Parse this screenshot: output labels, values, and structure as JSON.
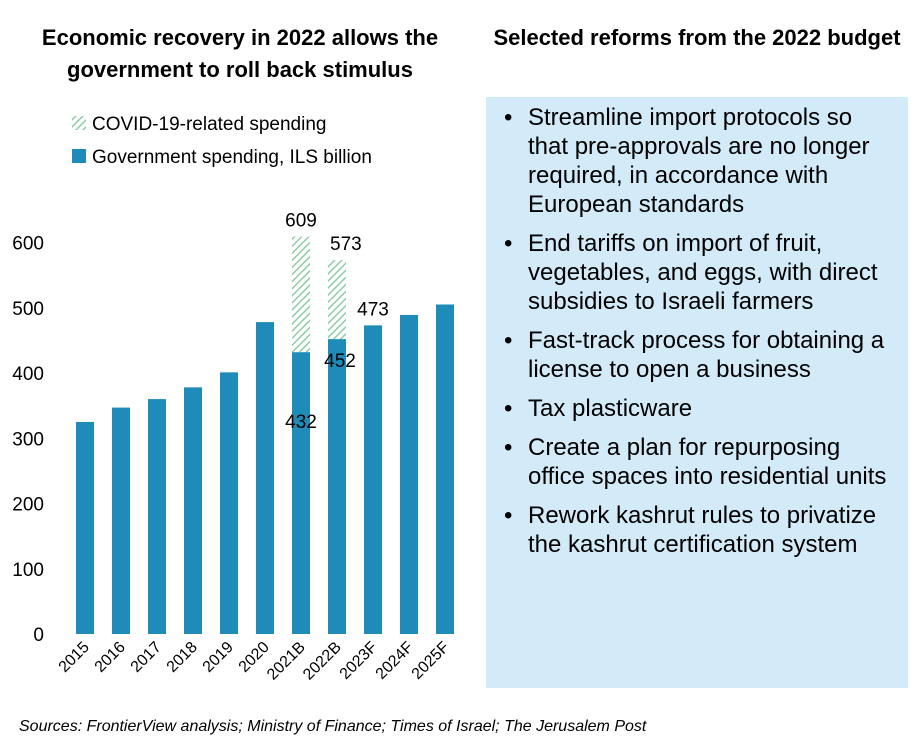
{
  "chart_title": "Economic recovery in 2022 allows the government to roll back stimulus",
  "reforms_title": "Selected reforms from the 2022 budget",
  "reforms": [
    "Streamline import protocols so that pre-approvals are no longer required, in accordance with European standards",
    "End tariffs on import of fruit, vegetables, and eggs, with direct subsidies to Israeli farmers",
    "Fast-track process for obtaining a license to open a business",
    "Tax plasticware",
    "Create a plan for repurposing office spaces into residential units",
    "Rework kashrut rules to privatize the kashrut certification system"
  ],
  "source": "Sources: FrontierView analysis; Ministry of Finance; Times of Israel; The Jerusalem Post",
  "colors": {
    "base": "#1e8bb8",
    "covid": "#7cc79a",
    "box": "#d3eaf8"
  },
  "chart_data": {
    "type": "bar",
    "stacked": true,
    "categories": [
      "2015",
      "2016",
      "2017",
      "2018",
      "2019",
      "2020",
      "2021B",
      "2022B",
      "2023F",
      "2024F",
      "2025F"
    ],
    "series": [
      {
        "name": "Government spending, ILS billion",
        "values": [
          325,
          347,
          360,
          378,
          401,
          478,
          432,
          452,
          473,
          489,
          505
        ]
      },
      {
        "name": "COVID-19-related spending",
        "values": [
          0,
          0,
          0,
          0,
          0,
          0,
          177,
          121,
          0,
          0,
          0
        ]
      }
    ],
    "data_labels": [
      {
        "category": "2021B",
        "total": "609",
        "base": "432"
      },
      {
        "category": "2022B",
        "total": "573",
        "base": "452"
      },
      {
        "category": "2023F",
        "total": "473"
      }
    ],
    "yticks": [
      "0",
      "100",
      "200",
      "300",
      "400",
      "500",
      "600"
    ],
    "ylim": [
      0,
      700
    ],
    "legend_position": "top-left"
  }
}
